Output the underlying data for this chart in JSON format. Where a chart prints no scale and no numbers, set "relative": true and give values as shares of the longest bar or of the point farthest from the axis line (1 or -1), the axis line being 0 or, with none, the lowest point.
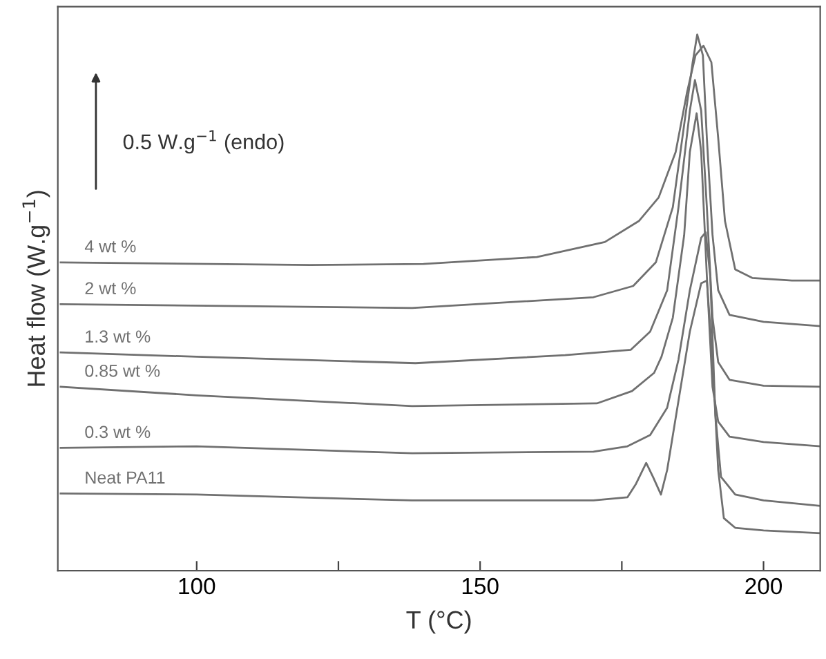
{
  "chart_data": {
    "type": "line",
    "relative": true,
    "xlabel": "T (°C)",
    "ylabel": "Heat flow (W.g$^{−1}$)",
    "annotations": [
      "0.5 W.g$^{−1}$ (endo)"
    ],
    "xlim": [
      75.5,
      210
    ],
    "xticks": [
      100,
      {
        "value": 125,
        "label": null
      },
      150,
      {
        "value": 175,
        "label": null
      },
      200
    ],
    "tick_labels": "x",
    "grid": false,
    "legend": false,
    "marker": "none",
    "line_style": "solid",
    "series": [
      {
        "name": "4 wt %",
        "color": "#707070",
        "x": [
          76,
          120,
          140,
          160,
          172,
          178,
          181.5,
          184.5,
          186.5,
          188,
          189.4,
          190.8,
          192,
          193.2,
          195,
          198,
          205,
          210
        ],
        "values": [
          0.575,
          0.57,
          0.572,
          0.585,
          0.613,
          0.652,
          0.696,
          0.781,
          0.892,
          0.961,
          0.979,
          0.948,
          0.807,
          0.652,
          0.562,
          0.546,
          0.541,
          0.541
        ]
      },
      {
        "name": "2 wt %",
        "color": "#707070",
        "x": [
          76,
          138,
          170,
          177,
          181,
          184,
          186,
          187.5,
          188.3,
          189.3,
          190,
          191,
          192,
          194,
          200,
          210
        ],
        "values": [
          0.497,
          0.49,
          0.51,
          0.531,
          0.575,
          0.678,
          0.832,
          0.948,
          1,
          0.961,
          0.807,
          0.626,
          0.523,
          0.477,
          0.464,
          0.456
        ]
      },
      {
        "name": "1.3 wt %",
        "color": "#707070",
        "x": [
          76,
          100,
          138.6,
          165,
          176.6,
          180,
          183,
          185,
          187,
          187.9,
          189,
          190,
          191,
          192,
          194,
          200,
          210
        ],
        "values": [
          0.407,
          0.399,
          0.387,
          0.402,
          0.412,
          0.446,
          0.523,
          0.678,
          0.858,
          0.915,
          0.858,
          0.678,
          0.472,
          0.389,
          0.356,
          0.345,
          0.343
        ]
      },
      {
        "name": "0.85 wt %",
        "color": "#707070",
        "x": [
          76,
          100,
          138,
          170.6,
          176.8,
          180.7,
          182,
          184,
          186,
          187,
          188.2,
          189,
          190,
          191,
          192,
          194,
          200,
          210
        ],
        "values": [
          0.343,
          0.327,
          0.307,
          0.312,
          0.335,
          0.369,
          0.399,
          0.472,
          0.626,
          0.781,
          0.853,
          0.781,
          0.549,
          0.343,
          0.278,
          0.25,
          0.24,
          0.232
        ]
      },
      {
        "name": "0.3 wt %",
        "color": "#707070",
        "x": [
          76,
          100,
          138,
          170,
          176,
          180,
          183,
          185,
          187,
          189,
          189.8,
          190.6,
          191.5,
          192.5,
          195,
          200,
          210
        ],
        "values": [
          0.229,
          0.232,
          0.219,
          0.222,
          0.232,
          0.253,
          0.304,
          0.394,
          0.523,
          0.621,
          0.631,
          0.549,
          0.291,
          0.175,
          0.142,
          0.131,
          0.121
        ]
      },
      {
        "name": "Neat PA11",
        "color": "#707070",
        "x": [
          76,
          100,
          138,
          170,
          176,
          177.5,
          179.3,
          180.5,
          181.9,
          183,
          185,
          187,
          189,
          190,
          191,
          192,
          193,
          195,
          200,
          210
        ],
        "values": [
          0.144,
          0.142,
          0.131,
          0.131,
          0.137,
          0.162,
          0.201,
          0.175,
          0.142,
          0.188,
          0.317,
          0.446,
          0.536,
          0.541,
          0.394,
          0.188,
          0.098,
          0.08,
          0.075,
          0.07
        ]
      }
    ]
  }
}
